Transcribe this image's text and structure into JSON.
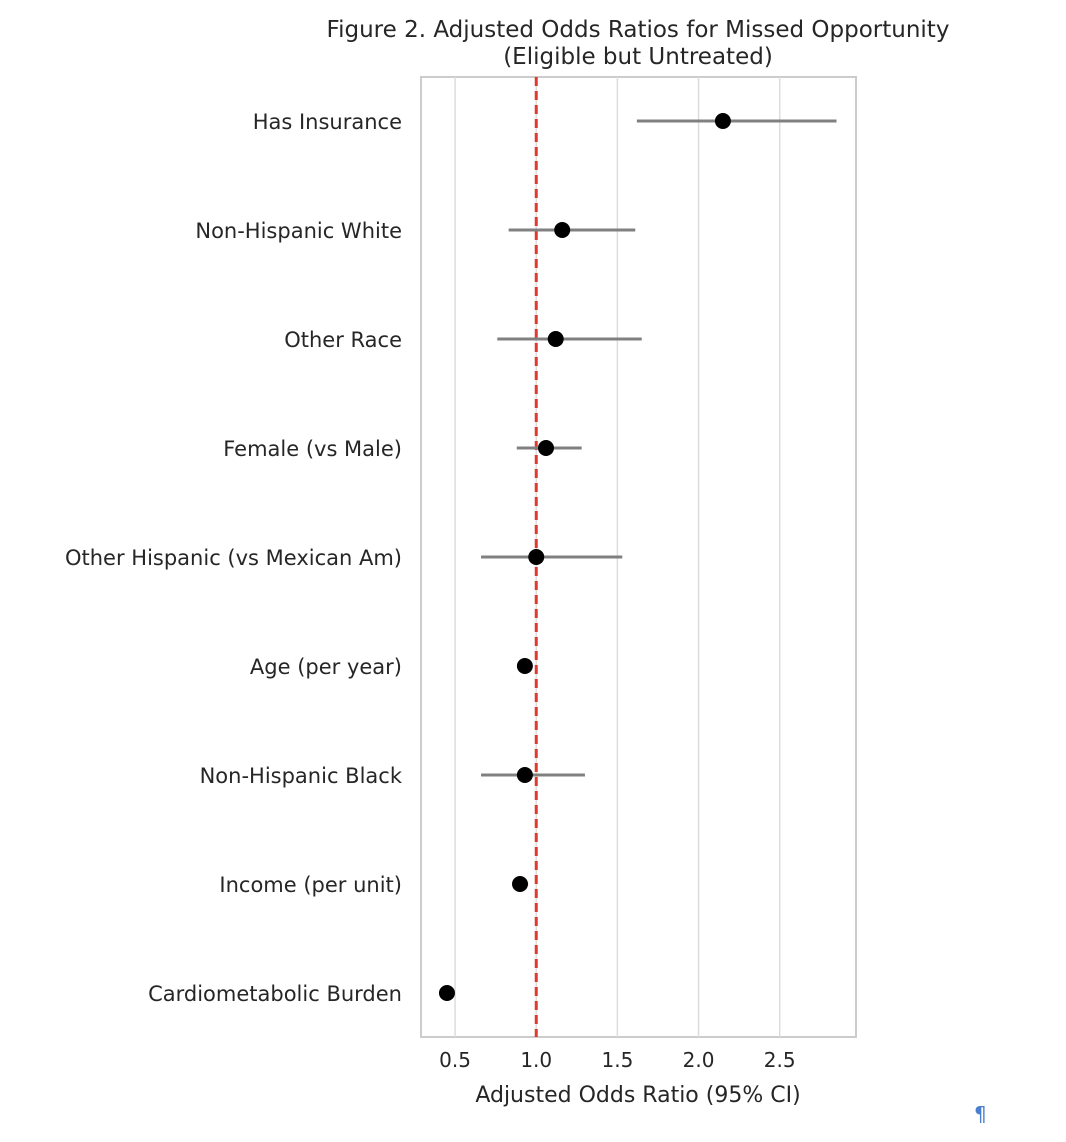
{
  "chart_data": {
    "type": "forest",
    "title": [
      "Figure 2. Adjusted Odds Ratios for Missed Opportunity",
      "(Eligible but Untreated)"
    ],
    "xlabel": "Adjusted Odds Ratio (95% CI)",
    "ylabel": "",
    "xlim": [
      0.29,
      2.97
    ],
    "xticks": [
      0.5,
      1.0,
      1.5,
      2.0,
      2.5
    ],
    "xtick_labels": [
      "0.5",
      "1.0",
      "1.5",
      "2.0",
      "2.5"
    ],
    "reference_line": 1.0,
    "grid": "vertical",
    "colors": {
      "point": "#000000",
      "ci": "#808080",
      "reference": "#e03a2f",
      "grid": "#dddddd",
      "frame": "#cccccc"
    },
    "rows": [
      {
        "label": "Has Insurance",
        "or": 2.15,
        "lo": 1.62,
        "hi": 2.85
      },
      {
        "label": "Non-Hispanic White",
        "or": 1.16,
        "lo": 0.83,
        "hi": 1.61
      },
      {
        "label": "Other Race",
        "or": 1.12,
        "lo": 0.76,
        "hi": 1.65
      },
      {
        "label": "Female (vs Male)",
        "or": 1.06,
        "lo": 0.88,
        "hi": 1.28
      },
      {
        "label": "Other Hispanic (vs Mexican Am)",
        "or": 1.0,
        "lo": 0.66,
        "hi": 1.53
      },
      {
        "label": "Age (per year)",
        "or": 0.93,
        "lo": 0.92,
        "hi": 0.95
      },
      {
        "label": "Non-Hispanic Black",
        "or": 0.93,
        "lo": 0.66,
        "hi": 1.3
      },
      {
        "label": "Income (per unit)",
        "or": 0.9,
        "lo": 0.86,
        "hi": 0.95
      },
      {
        "label": "Cardiometabolic Burden",
        "or": 0.45,
        "lo": 0.42,
        "hi": 0.48
      }
    ]
  },
  "marker": "¶"
}
